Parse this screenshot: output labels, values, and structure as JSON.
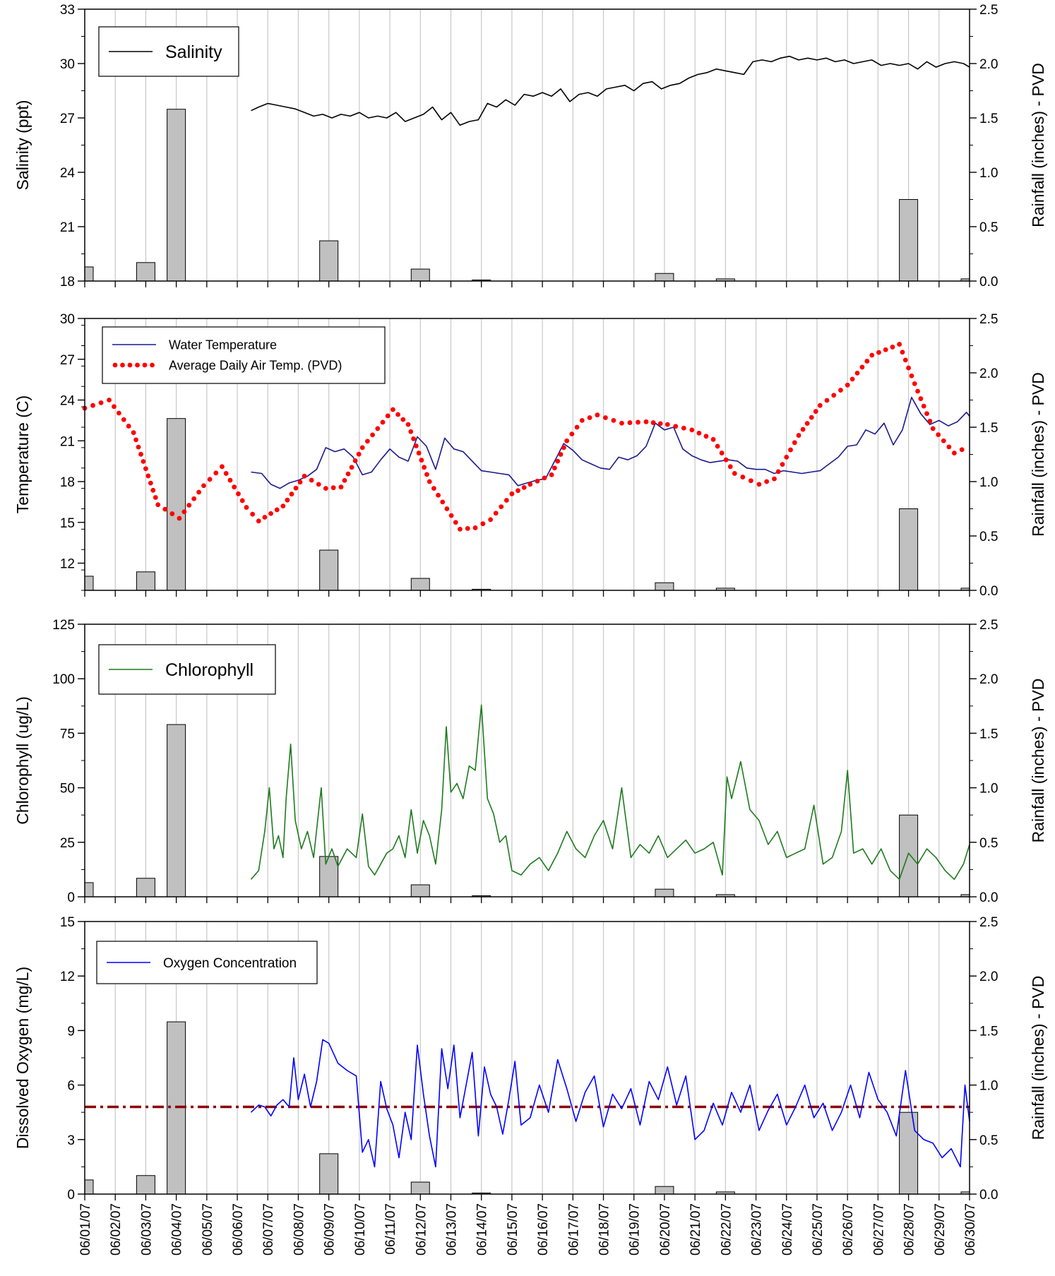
{
  "chart_data": [
    {
      "type": "line",
      "ylabel": "Salinity (ppt)",
      "y2label": "Rainfall (inches) - PVD",
      "ylim": [
        18,
        33
      ],
      "yticks": [
        18,
        21,
        24,
        27,
        30,
        33
      ],
      "y2lim": [
        0,
        2.5
      ],
      "y2ticks": [
        "0.0",
        "0.5",
        "1.0",
        "1.5",
        "2.0",
        "2.5"
      ],
      "grid": "vertical",
      "legend_position": "top-left",
      "series": [
        {
          "name": "Salinity",
          "color": "#000000",
          "style": "solid",
          "x": [
            6.45,
            6.7,
            7.0,
            7.3,
            7.6,
            7.9,
            8.2,
            8.5,
            8.8,
            9.1,
            9.4,
            9.7,
            10.0,
            10.3,
            10.6,
            10.9,
            11.2,
            11.5,
            11.8,
            12.1,
            12.4,
            12.7,
            13.0,
            13.3,
            13.6,
            13.9,
            14.2,
            14.5,
            14.8,
            15.1,
            15.4,
            15.7,
            16.0,
            16.3,
            16.6,
            16.9,
            17.2,
            17.5,
            17.8,
            18.1,
            18.4,
            18.7,
            19.0,
            19.3,
            19.6,
            19.9,
            20.2,
            20.5,
            20.8,
            21.1,
            21.4,
            21.7,
            22.0,
            22.3,
            22.6,
            22.9,
            23.2,
            23.5,
            23.8,
            24.1,
            24.4,
            24.7,
            25.0,
            25.3,
            25.6,
            25.9,
            26.2,
            26.5,
            26.8,
            27.1,
            27.4,
            27.7,
            28.0,
            28.3,
            28.6,
            28.9,
            29.2,
            29.5,
            29.8,
            30.0
          ],
          "values": [
            27.4,
            27.6,
            27.8,
            27.7,
            27.6,
            27.5,
            27.3,
            27.1,
            27.2,
            27.0,
            27.2,
            27.1,
            27.3,
            27.0,
            27.1,
            27.0,
            27.3,
            26.8,
            27.0,
            27.2,
            27.6,
            26.9,
            27.3,
            26.6,
            26.8,
            26.9,
            27.8,
            27.6,
            28.0,
            27.7,
            28.3,
            28.2,
            28.4,
            28.2,
            28.6,
            27.9,
            28.3,
            28.4,
            28.2,
            28.6,
            28.7,
            28.8,
            28.5,
            28.9,
            29.0,
            28.6,
            28.8,
            28.9,
            29.2,
            29.4,
            29.5,
            29.7,
            29.6,
            29.5,
            29.4,
            30.1,
            30.2,
            30.1,
            30.3,
            30.4,
            30.2,
            30.3,
            30.2,
            30.3,
            30.1,
            30.2,
            30.0,
            30.1,
            30.2,
            29.9,
            30.0,
            29.9,
            30.0,
            29.7,
            30.1,
            29.8,
            30.0,
            30.1,
            30.0,
            29.8
          ]
        }
      ]
    },
    {
      "type": "line",
      "ylabel": "Temperature (C)",
      "y2label": "Rainfall (inches) - PVD",
      "ylim": [
        10,
        30
      ],
      "yticks": [
        12,
        15,
        18,
        21,
        24,
        27,
        30
      ],
      "y2lim": [
        0,
        2.5
      ],
      "y2ticks": [
        "0.0",
        "0.5",
        "1.0",
        "1.5",
        "2.0",
        "2.5"
      ],
      "grid": "vertical",
      "legend_position": "top-left",
      "series": [
        {
          "name": "Water Temperature",
          "color": "#1a1a8c",
          "style": "solid",
          "x": [
            6.45,
            6.8,
            7.1,
            7.4,
            7.7,
            8.0,
            8.3,
            8.6,
            8.9,
            9.2,
            9.5,
            9.8,
            10.1,
            10.4,
            10.7,
            11.0,
            11.3,
            11.6,
            11.9,
            12.2,
            12.5,
            12.8,
            13.1,
            13.4,
            13.7,
            14.0,
            14.3,
            14.6,
            14.9,
            15.2,
            15.5,
            15.8,
            16.1,
            16.4,
            16.7,
            17.0,
            17.3,
            17.6,
            17.9,
            18.2,
            18.5,
            18.8,
            19.1,
            19.4,
            19.7,
            20.0,
            20.3,
            20.6,
            20.9,
            21.2,
            21.5,
            21.8,
            22.1,
            22.4,
            22.7,
            23.0,
            23.3,
            23.6,
            23.9,
            24.2,
            24.5,
            24.8,
            25.1,
            25.4,
            25.7,
            26.0,
            26.3,
            26.6,
            26.9,
            27.2,
            27.5,
            27.8,
            28.1,
            28.4,
            28.7,
            29.0,
            29.3,
            29.6,
            29.9,
            30.0
          ],
          "values": [
            18.7,
            18.6,
            17.8,
            17.5,
            17.9,
            18.1,
            18.4,
            18.9,
            20.5,
            20.2,
            20.4,
            19.8,
            18.5,
            18.7,
            19.6,
            20.4,
            19.8,
            19.5,
            21.3,
            20.6,
            18.9,
            21.2,
            20.4,
            20.2,
            19.5,
            18.8,
            18.7,
            18.6,
            18.5,
            17.7,
            17.9,
            18.1,
            18.2,
            19.5,
            20.8,
            20.3,
            19.6,
            19.3,
            19.0,
            18.9,
            19.8,
            19.6,
            19.9,
            20.6,
            22.3,
            21.8,
            22.0,
            20.4,
            19.9,
            19.6,
            19.4,
            19.5,
            19.6,
            19.5,
            19.0,
            18.9,
            18.9,
            18.6,
            18.8,
            18.7,
            18.6,
            18.7,
            18.8,
            19.3,
            19.8,
            20.6,
            20.7,
            21.8,
            21.5,
            22.3,
            20.7,
            21.8,
            24.2,
            23.0,
            22.2,
            22.5,
            22.1,
            22.4,
            23.1,
            22.8
          ]
        },
        {
          "name": "Average Daily Air Temp. (PVD)",
          "color": "#ff0000",
          "style": "dotted",
          "x": [
            1.0,
            1.8,
            2.6,
            3.4,
            4.1,
            4.9,
            5.5,
            6.3,
            6.7,
            7.5,
            8.2,
            8.9,
            9.4,
            10.1,
            11.1,
            11.6,
            12.3,
            13.3,
            13.8,
            14.3,
            15.0,
            15.6,
            16.3,
            16.8,
            17.3,
            17.8,
            18.6,
            19.4,
            20.1,
            20.9,
            21.6,
            22.3,
            23.1,
            23.6,
            24.4,
            25.1,
            26.0,
            26.8,
            27.7,
            28.2,
            28.8,
            29.5,
            30.0
          ],
          "values": [
            23.4,
            24.0,
            21.6,
            16.3,
            15.3,
            17.7,
            19.1,
            16.1,
            15.1,
            16.2,
            18.4,
            17.5,
            17.6,
            20.5,
            23.3,
            22.2,
            18.0,
            14.5,
            14.6,
            15.2,
            17.1,
            17.8,
            18.5,
            21.0,
            22.5,
            22.9,
            22.3,
            22.4,
            22.2,
            21.8,
            21.1,
            18.6,
            17.8,
            18.2,
            21.4,
            23.6,
            25.1,
            27.3,
            28.1,
            25.2,
            21.9,
            20.1,
            20.6
          ]
        }
      ]
    },
    {
      "type": "line",
      "ylabel": "Chlorophyll (ug/L)",
      "y2label": "Rainfall (inches) - PVD",
      "ylim": [
        0,
        125
      ],
      "yticks": [
        0,
        25,
        50,
        75,
        100,
        125
      ],
      "y2lim": [
        0,
        2.5
      ],
      "y2ticks": [
        "0.0",
        "0.5",
        "1.0",
        "1.5",
        "2.0",
        "2.5"
      ],
      "grid": "vertical",
      "legend_position": "top-left",
      "series": [
        {
          "name": "Chlorophyll",
          "color": "#1e7a1e",
          "style": "solid",
          "x": [
            6.45,
            6.7,
            6.9,
            7.05,
            7.2,
            7.35,
            7.5,
            7.6,
            7.75,
            7.9,
            8.1,
            8.3,
            8.5,
            8.75,
            8.9,
            9.1,
            9.3,
            9.6,
            9.9,
            10.1,
            10.3,
            10.5,
            10.7,
            10.9,
            11.1,
            11.3,
            11.5,
            11.7,
            11.9,
            12.1,
            12.3,
            12.5,
            12.7,
            12.85,
            13.0,
            13.2,
            13.4,
            13.6,
            13.8,
            14.0,
            14.2,
            14.4,
            14.6,
            14.8,
            15.0,
            15.3,
            15.6,
            15.9,
            16.2,
            16.5,
            16.8,
            17.1,
            17.4,
            17.7,
            18.0,
            18.3,
            18.6,
            18.9,
            19.2,
            19.5,
            19.8,
            20.1,
            20.4,
            20.7,
            21.0,
            21.3,
            21.6,
            21.9,
            22.05,
            22.2,
            22.5,
            22.8,
            23.1,
            23.4,
            23.7,
            24.0,
            24.3,
            24.6,
            24.9,
            25.2,
            25.5,
            25.8,
            26.0,
            26.2,
            26.5,
            26.8,
            27.1,
            27.4,
            27.7,
            28.0,
            28.3,
            28.6,
            28.9,
            29.2,
            29.5,
            29.8,
            30.0
          ],
          "values": [
            8,
            12,
            30,
            50,
            22,
            28,
            18,
            45,
            70,
            35,
            22,
            30,
            18,
            50,
            15,
            22,
            14,
            22,
            18,
            38,
            14,
            10,
            15,
            20,
            22,
            28,
            18,
            40,
            20,
            35,
            28,
            15,
            40,
            78,
            48,
            52,
            45,
            60,
            58,
            88,
            45,
            38,
            25,
            28,
            12,
            10,
            15,
            18,
            12,
            20,
            30,
            22,
            18,
            28,
            35,
            22,
            50,
            18,
            24,
            20,
            28,
            18,
            22,
            26,
            20,
            22,
            25,
            10,
            55,
            45,
            62,
            40,
            35,
            24,
            30,
            18,
            20,
            22,
            42,
            15,
            18,
            30,
            58,
            20,
            22,
            15,
            22,
            12,
            8,
            20,
            15,
            22,
            18,
            12,
            8,
            15,
            24
          ]
        }
      ]
    },
    {
      "type": "line",
      "ylabel": "Dissolved Oxygen (mg/L)",
      "y2label": "Rainfall (inches) - PVD",
      "ylim": [
        0,
        15
      ],
      "yticks": [
        0,
        3,
        6,
        9,
        12,
        15
      ],
      "y2lim": [
        0,
        2.5
      ],
      "y2ticks": [
        "0.0",
        "0.5",
        "1.0",
        "1.5",
        "2.0",
        "2.5"
      ],
      "grid": "vertical",
      "legend_position": "top-left",
      "reference_line": {
        "y": 4.8,
        "color": "#8b0000",
        "style": "dash-dot"
      },
      "series": [
        {
          "name": "Oxygen Concentration",
          "color": "#0000ff",
          "style": "solid",
          "x": [
            6.45,
            6.7,
            6.9,
            7.1,
            7.3,
            7.5,
            7.7,
            7.85,
            8.0,
            8.2,
            8.4,
            8.6,
            8.8,
            9.0,
            9.3,
            9.6,
            9.9,
            10.1,
            10.3,
            10.5,
            10.7,
            10.9,
            11.1,
            11.3,
            11.5,
            11.7,
            11.9,
            12.1,
            12.3,
            12.5,
            12.7,
            12.9,
            13.1,
            13.3,
            13.5,
            13.7,
            13.9,
            14.1,
            14.3,
            14.5,
            14.7,
            14.9,
            15.1,
            15.3,
            15.6,
            15.9,
            16.2,
            16.5,
            16.8,
            17.1,
            17.4,
            17.7,
            18.0,
            18.3,
            18.6,
            18.9,
            19.2,
            19.5,
            19.8,
            20.1,
            20.4,
            20.7,
            21.0,
            21.3,
            21.6,
            21.9,
            22.2,
            22.5,
            22.8,
            23.1,
            23.4,
            23.7,
            24.0,
            24.3,
            24.6,
            24.9,
            25.2,
            25.5,
            25.8,
            26.1,
            26.4,
            26.7,
            27.0,
            27.3,
            27.6,
            27.9,
            28.2,
            28.5,
            28.8,
            29.1,
            29.4,
            29.7,
            29.85,
            30.0
          ],
          "values": [
            4.5,
            4.9,
            4.8,
            4.3,
            4.9,
            5.2,
            4.8,
            7.5,
            5.2,
            6.6,
            4.8,
            6.2,
            8.5,
            8.3,
            7.2,
            6.8,
            6.5,
            2.3,
            3.0,
            1.5,
            6.2,
            4.7,
            3.8,
            2.0,
            4.5,
            3.0,
            8.2,
            5.5,
            3.2,
            1.5,
            8.0,
            5.8,
            8.2,
            4.2,
            6.0,
            7.8,
            3.2,
            7.0,
            5.5,
            4.8,
            3.3,
            5.2,
            7.3,
            3.8,
            4.2,
            6.0,
            4.5,
            7.4,
            5.8,
            4.0,
            5.6,
            6.5,
            3.7,
            5.5,
            4.7,
            5.8,
            3.8,
            6.2,
            5.2,
            7.0,
            4.9,
            6.5,
            3.0,
            3.5,
            5.0,
            3.8,
            5.6,
            4.5,
            6.0,
            3.5,
            4.6,
            5.5,
            3.8,
            4.8,
            6.0,
            4.2,
            5.0,
            3.5,
            4.5,
            6.0,
            4.2,
            6.7,
            5.2,
            4.5,
            3.2,
            6.8,
            3.5,
            3.0,
            2.8,
            2.0,
            2.5,
            1.5,
            6.0,
            4.0
          ]
        }
      ]
    }
  ],
  "rainfall": {
    "name": "Rainfall (inches) - PVD",
    "fill": "#c0c0c0",
    "x": [
      1,
      3,
      4,
      9,
      12,
      14,
      20,
      22,
      28,
      30
    ],
    "values": [
      0.13,
      0.17,
      1.58,
      0.37,
      0.11,
      0.01,
      0.07,
      0.02,
      0.75,
      0.02
    ]
  },
  "x_axis": {
    "labels": [
      "06/01/07",
      "06/02/07",
      "06/03/07",
      "06/04/07",
      "06/05/07",
      "06/06/07",
      "06/07/07",
      "06/08/07",
      "06/09/07",
      "06/10/07",
      "06/11/07",
      "06/12/07",
      "06/13/07",
      "06/14/07",
      "06/15/07",
      "06/16/07",
      "06/17/07",
      "06/18/07",
      "06/19/07",
      "06/20/07",
      "06/21/07",
      "06/22/07",
      "06/23/07",
      "06/24/07",
      "06/25/07",
      "06/26/07",
      "06/27/07",
      "06/28/07",
      "06/29/07",
      "06/30/07"
    ]
  }
}
